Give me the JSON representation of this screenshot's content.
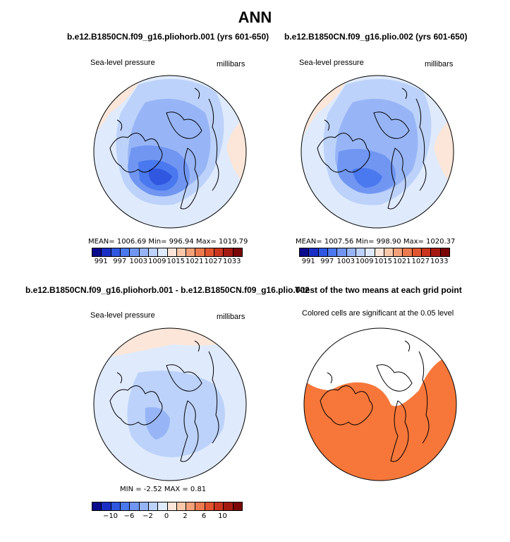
{
  "figure": {
    "title": "ANN"
  },
  "chart_data": [
    {
      "type": "heatmap",
      "title": "b.e12.B1850CN.f09_g16.pliohorb.001 (yrs 601-650)",
      "variable": "Sea-level pressure",
      "units": "millibars",
      "stats": "MEAN= 1006.69   Min= 996.94   Max= 1019.79",
      "mean": 1006.69,
      "min": 996.94,
      "max": 1019.79,
      "colorbar": {
        "levels": [
          991,
          994,
          997,
          1000,
          1003,
          1006,
          1009,
          1012,
          1015,
          1018,
          1021,
          1024,
          1027,
          1030,
          1033
        ],
        "labels": [
          "991",
          "997",
          "1003",
          "1009",
          "1015",
          "1021",
          "1027",
          "1033"
        ]
      }
    },
    {
      "type": "heatmap",
      "title": "b.e12.B1850CN.f09_g16.plio.002 (yrs 601-650)",
      "variable": "Sea-level pressure",
      "units": "millibars",
      "stats": "MEAN= 1007.56   Min= 998.90   Max= 1020.37",
      "mean": 1007.56,
      "min": 998.9,
      "max": 1020.37,
      "colorbar": {
        "levels": [
          991,
          994,
          997,
          1000,
          1003,
          1006,
          1009,
          1012,
          1015,
          1018,
          1021,
          1024,
          1027,
          1030,
          1033
        ],
        "labels": [
          "991",
          "997",
          "1003",
          "1009",
          "1015",
          "1021",
          "1027",
          "1033"
        ]
      }
    },
    {
      "type": "heatmap",
      "title": "b.e12.B1850CN.f09_g16.pliohorb.001 - b.e12.B1850CN.f09_g16.plio.002",
      "variable": "Sea-level pressure",
      "units": "millibars",
      "stats": "MIN =   -2.52  MAX =     0.81",
      "min": -2.52,
      "max": 0.81,
      "colorbar": {
        "levels": [
          -12,
          -10,
          -8,
          -6,
          -4,
          -2,
          -1,
          0,
          1,
          2,
          4,
          6,
          8,
          10,
          12
        ],
        "labels": [
          "-10",
          "-6",
          "-2",
          "0",
          "2",
          "6",
          "10"
        ]
      }
    },
    {
      "type": "heatmap",
      "title": "T-test of the two means at each grid point",
      "subtitle": "Colored cells are significant at the 0.05 level"
    }
  ],
  "colors": {
    "scale": [
      "#0a0a8c",
      "#1a2fc4",
      "#2f57e0",
      "#4a78ee",
      "#7096f2",
      "#97b5f6",
      "#bcd2fa",
      "#dfeafd",
      "#fbe6d9",
      "#f9c8aa",
      "#f4a079",
      "#ec7a4f",
      "#e05530",
      "#c9351e",
      "#a41a12",
      "#7a0705"
    ],
    "significant": "#f7773a"
  }
}
